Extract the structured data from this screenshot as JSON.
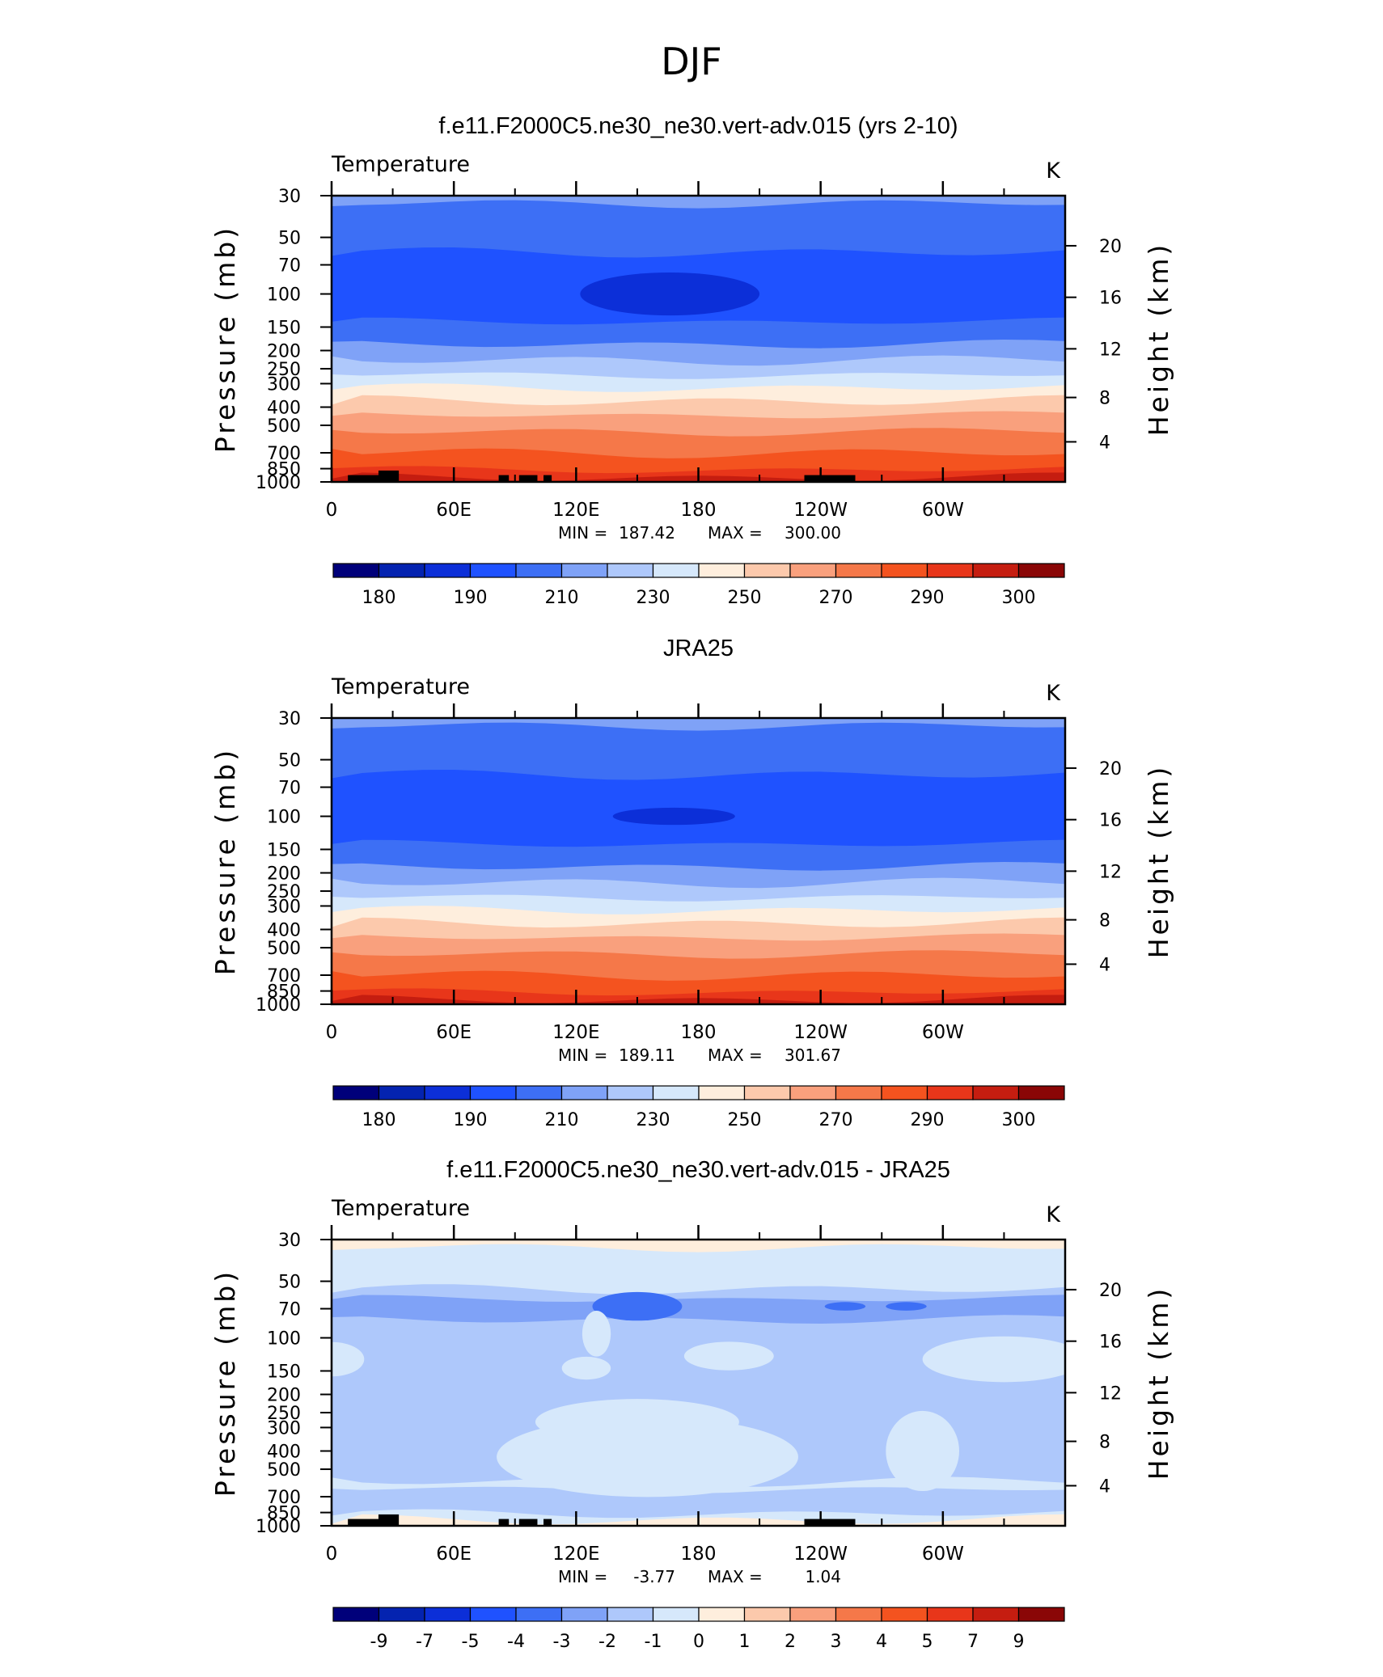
{
  "page_title": "DJF",
  "colors": {
    "frame": "#000000",
    "land": "#000000"
  },
  "chart_data": [
    {
      "type": "heatmap",
      "title": "f.e11.F2000C5.ne30_ne30.vert-adv.015 (yrs 2-10)",
      "subtitle": "Temperature",
      "units": "K",
      "ylabel": "Pressure (mb)",
      "ylabel_right": "Height (km)",
      "x_ticks": [
        "0",
        "60E",
        "120E",
        "180",
        "120W",
        "60W"
      ],
      "x_tick_values": [
        0,
        60,
        120,
        180,
        240,
        300
      ],
      "xlim": [
        0,
        360
      ],
      "y_ticks": [
        "30",
        "50",
        "70",
        "100",
        "150",
        "200",
        "250",
        "300",
        "400",
        "500",
        "700",
        "850",
        "1000"
      ],
      "y_tick_values": [
        30,
        50,
        70,
        100,
        150,
        200,
        250,
        300,
        400,
        500,
        700,
        850,
        1000
      ],
      "ylim": [
        1000,
        30
      ],
      "y_scale": "log",
      "height_ticks": [
        "4",
        "8",
        "12",
        "16",
        "20"
      ],
      "height_tick_values": [
        4,
        8,
        12,
        16,
        20
      ],
      "min_label": "MIN =",
      "min_value": "187.42",
      "max_label": "MAX =",
      "max_value": "300.00",
      "colorbar_labels": [
        "180",
        "190",
        "210",
        "230",
        "250",
        "270",
        "290",
        "300"
      ],
      "colorbar_colors": [
        "#00007a",
        "#0423b0",
        "#0c2fd8",
        "#1f52ff",
        "#3d6ff5",
        "#7fa2f7",
        "#aec8fb",
        "#d6e8fb",
        "#feeedd",
        "#fcc9ac",
        "#f9a07d",
        "#f57849",
        "#f4531f",
        "#e8361a",
        "#c51d10",
        "#8a0606"
      ],
      "bands": [
        {
          "p": 30,
          "color": "#7fa2f7"
        },
        {
          "p": 33,
          "color": "#3d6ff5"
        },
        {
          "p": 60,
          "color": "#1f52ff"
        },
        {
          "p": 140,
          "color": "#3d6ff5"
        },
        {
          "p": 185,
          "color": "#7fa2f7"
        },
        {
          "p": 225,
          "color": "#aec8fb"
        },
        {
          "p": 270,
          "color": "#d6e8fb"
        },
        {
          "p": 315,
          "color": "#feeedd"
        },
        {
          "p": 370,
          "color": "#fcc9ac"
        },
        {
          "p": 440,
          "color": "#f9a07d"
        },
        {
          "p": 540,
          "color": "#f57849"
        },
        {
          "p": 700,
          "color": "#f4531f"
        },
        {
          "p": 860,
          "color": "#e8361a"
        },
        {
          "p": 945,
          "color": "#c51d10"
        }
      ],
      "blobs": [
        {
          "lon": 166,
          "p": 100,
          "w": 44,
          "h": 0.075,
          "color": "#0c2fd8"
        }
      ]
    },
    {
      "type": "heatmap",
      "title": "JRA25",
      "subtitle": "Temperature",
      "units": "K",
      "ylabel": "Pressure (mb)",
      "ylabel_right": "Height (km)",
      "x_ticks": [
        "0",
        "60E",
        "120E",
        "180",
        "120W",
        "60W"
      ],
      "x_tick_values": [
        0,
        60,
        120,
        180,
        240,
        300
      ],
      "xlim": [
        0,
        360
      ],
      "y_ticks": [
        "30",
        "50",
        "70",
        "100",
        "150",
        "200",
        "250",
        "300",
        "400",
        "500",
        "700",
        "850",
        "1000"
      ],
      "y_tick_values": [
        30,
        50,
        70,
        100,
        150,
        200,
        250,
        300,
        400,
        500,
        700,
        850,
        1000
      ],
      "ylim": [
        1000,
        30
      ],
      "y_scale": "log",
      "height_ticks": [
        "4",
        "8",
        "12",
        "16",
        "20"
      ],
      "height_tick_values": [
        4,
        8,
        12,
        16,
        20
      ],
      "min_label": "MIN =",
      "min_value": "189.11",
      "max_label": "MAX =",
      "max_value": "301.67",
      "colorbar_labels": [
        "180",
        "190",
        "210",
        "230",
        "250",
        "270",
        "290",
        "300"
      ],
      "colorbar_colors": [
        "#00007a",
        "#0423b0",
        "#0c2fd8",
        "#1f52ff",
        "#3d6ff5",
        "#7fa2f7",
        "#aec8fb",
        "#d6e8fb",
        "#feeedd",
        "#fcc9ac",
        "#f9a07d",
        "#f57849",
        "#f4531f",
        "#e8361a",
        "#c51d10",
        "#8a0606"
      ],
      "bands": [
        {
          "p": 30,
          "color": "#7fa2f7"
        },
        {
          "p": 33,
          "color": "#3d6ff5"
        },
        {
          "p": 60,
          "color": "#1f52ff"
        },
        {
          "p": 140,
          "color": "#3d6ff5"
        },
        {
          "p": 185,
          "color": "#7fa2f7"
        },
        {
          "p": 225,
          "color": "#aec8fb"
        },
        {
          "p": 270,
          "color": "#d6e8fb"
        },
        {
          "p": 315,
          "color": "#feeedd"
        },
        {
          "p": 370,
          "color": "#fcc9ac"
        },
        {
          "p": 440,
          "color": "#f9a07d"
        },
        {
          "p": 540,
          "color": "#f57849"
        },
        {
          "p": 700,
          "color": "#f4531f"
        },
        {
          "p": 860,
          "color": "#e8361a"
        },
        {
          "p": 945,
          "color": "#c51d10"
        }
      ],
      "blobs": [
        {
          "lon": 168,
          "p": 100,
          "w": 30,
          "h": 0.03,
          "color": "#0c2fd8"
        }
      ]
    },
    {
      "type": "heatmap",
      "title": "f.e11.F2000C5.ne30_ne30.vert-adv.015 - JRA25",
      "subtitle": "Temperature",
      "units": "K",
      "ylabel": "Pressure (mb)",
      "ylabel_right": "Height (km)",
      "x_ticks": [
        "0",
        "60E",
        "120E",
        "180",
        "120W",
        "60W"
      ],
      "x_tick_values": [
        0,
        60,
        120,
        180,
        240,
        300
      ],
      "xlim": [
        0,
        360
      ],
      "y_ticks": [
        "30",
        "50",
        "70",
        "100",
        "150",
        "200",
        "250",
        "300",
        "400",
        "500",
        "700",
        "850",
        "1000"
      ],
      "y_tick_values": [
        30,
        50,
        70,
        100,
        150,
        200,
        250,
        300,
        400,
        500,
        700,
        850,
        1000
      ],
      "ylim": [
        1000,
        30
      ],
      "y_scale": "log",
      "height_ticks": [
        "4",
        "8",
        "12",
        "16",
        "20"
      ],
      "height_tick_values": [
        4,
        8,
        12,
        16,
        20
      ],
      "min_label": "MIN =",
      "min_value": "-3.77",
      "max_label": "MAX =",
      "max_value": "1.04",
      "colorbar_labels": [
        "-9",
        "-7",
        "-5",
        "-4",
        "-3",
        "-2",
        "-1",
        "0",
        "1",
        "2",
        "3",
        "4",
        "5",
        "7",
        "9"
      ],
      "colorbar_colors": [
        "#00007a",
        "#0423b0",
        "#0c2fd8",
        "#1f52ff",
        "#3d6ff5",
        "#7fa2f7",
        "#aec8fb",
        "#d6e8fb",
        "#feeedd",
        "#fcc9ac",
        "#f9a07d",
        "#f57849",
        "#f4531f",
        "#e8361a",
        "#c51d10",
        "#8a0606"
      ],
      "bands": [
        {
          "p": 30,
          "color": "#feeedd"
        },
        {
          "p": 33,
          "color": "#d6e8fb"
        },
        {
          "p": 55,
          "color": "#aec8fb"
        },
        {
          "p": 62,
          "color": "#7fa2f7"
        },
        {
          "p": 80,
          "color": "#aec8fb"
        },
        {
          "p": 580,
          "color": "#d6e8fb"
        },
        {
          "p": 640,
          "color": "#aec8fb"
        },
        {
          "p": 860,
          "color": "#d6e8fb"
        },
        {
          "p": 930,
          "color": "#feeedd"
        }
      ],
      "blobs": [
        {
          "lon": 150,
          "p": 68,
          "w": 22,
          "h": 0.05,
          "color": "#3d6ff5"
        },
        {
          "lon": 252,
          "p": 68,
          "w": 10,
          "h": 0.015,
          "color": "#3d6ff5"
        },
        {
          "lon": 282,
          "p": 68,
          "w": 10,
          "h": 0.015,
          "color": "#3d6ff5"
        },
        {
          "lon": 0,
          "p": 130,
          "w": 16,
          "h": 0.06,
          "color": "#d6e8fb"
        },
        {
          "lon": 195,
          "p": 125,
          "w": 22,
          "h": 0.05,
          "color": "#d6e8fb"
        },
        {
          "lon": 330,
          "p": 130,
          "w": 40,
          "h": 0.08,
          "color": "#d6e8fb"
        },
        {
          "lon": 125,
          "p": 145,
          "w": 12,
          "h": 0.04,
          "color": "#d6e8fb"
        },
        {
          "lon": 155,
          "p": 430,
          "w": 74,
          "h": 0.14,
          "color": "#d6e8fb"
        },
        {
          "lon": 150,
          "p": 280,
          "w": 50,
          "h": 0.08,
          "color": "#d6e8fb"
        },
        {
          "lon": 290,
          "p": 400,
          "w": 18,
          "h": 0.14,
          "color": "#d6e8fb"
        },
        {
          "lon": 130,
          "p": 95,
          "w": 7,
          "h": 0.08,
          "color": "#d6e8fb"
        }
      ]
    }
  ]
}
